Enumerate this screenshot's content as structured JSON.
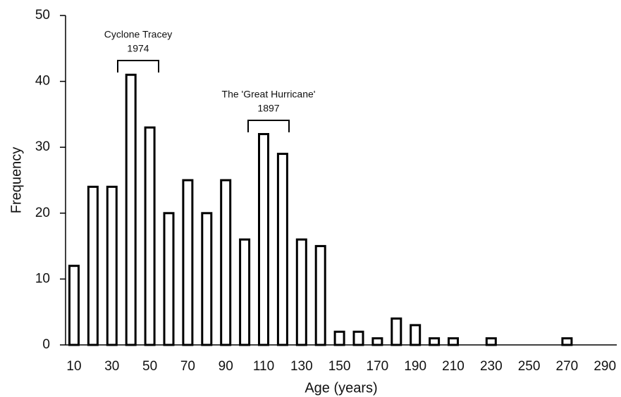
{
  "chart_data": {
    "type": "bar",
    "x_label": "Age (years)",
    "y_label": "Frequency",
    "categories": [
      "10",
      null,
      "30",
      null,
      "50",
      null,
      "70",
      null,
      "90",
      null,
      "110",
      null,
      "130",
      null,
      "150",
      null,
      "170",
      null,
      "190",
      null,
      "210",
      null,
      "230",
      null,
      "250",
      null,
      "270",
      null,
      "290"
    ],
    "values": [
      12,
      24,
      24,
      41,
      33,
      20,
      25,
      20,
      25,
      16,
      32,
      29,
      16,
      15,
      2,
      2,
      1,
      4,
      3,
      1,
      1,
      0,
      1,
      0,
      0,
      0,
      1,
      0,
      0
    ],
    "color": "#ffffff",
    "ylim": [
      0,
      50
    ],
    "yticks": [
      0,
      10,
      20,
      30,
      40,
      50
    ],
    "grid": false,
    "annotations": [
      {
        "lines": [
          "Cyclone Tracey",
          "1974"
        ]
      },
      {
        "lines": [
          "The 'Great Hurricane'",
          "1897"
        ]
      }
    ]
  }
}
